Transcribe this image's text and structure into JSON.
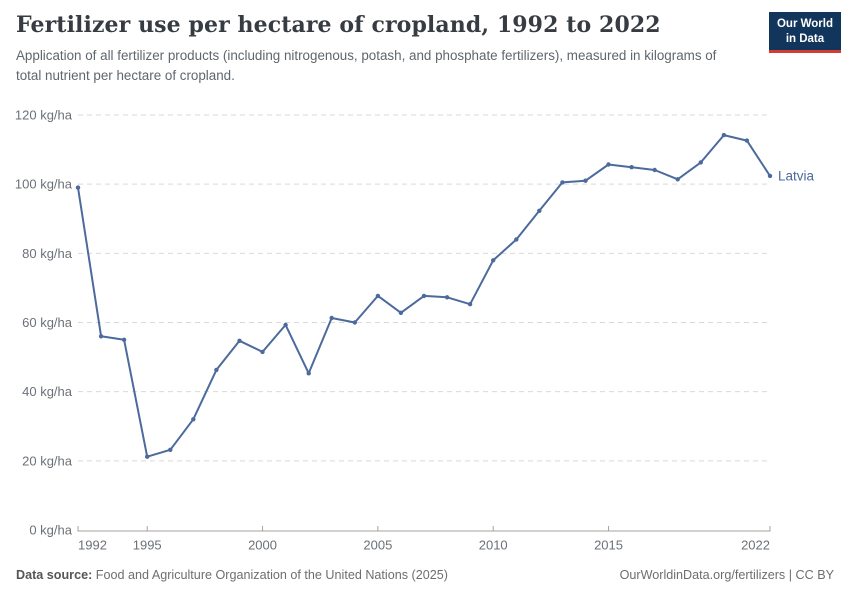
{
  "chart_data": {
    "type": "line",
    "title": "Fertilizer use per hectare of cropland, 1992 to 2022",
    "subtitle": "Application of all fertilizer products (including nitrogenous, potash, and phosphate fertilizers), measured in kilograms of total nutrient per hectare of cropland.",
    "x": [
      1992,
      1993,
      1994,
      1995,
      1996,
      1997,
      1998,
      1999,
      2000,
      2001,
      2002,
      2003,
      2004,
      2005,
      2006,
      2007,
      2008,
      2009,
      2010,
      2011,
      2012,
      2013,
      2014,
      2015,
      2016,
      2017,
      2018,
      2019,
      2020,
      2021,
      2022
    ],
    "series": [
      {
        "name": "Latvia",
        "color": "#4c6a9c",
        "values": [
          99,
          56,
          55,
          21.2,
          23.2,
          32,
          46.3,
          54.7,
          51.5,
          59.3,
          45.3,
          61.3,
          60,
          67.7,
          62.8,
          67.7,
          67.3,
          65.3,
          78,
          84,
          92.3,
          100.5,
          101,
          105.7,
          104.9,
          104.1,
          101.4,
          106.3,
          114.2,
          112.6,
          102.4
        ]
      }
    ],
    "end_label": "Latvia",
    "xlabel": "",
    "ylabel": "",
    "ylim": [
      0,
      120
    ],
    "xlim": [
      1992,
      2022
    ],
    "yticks": [
      0,
      20,
      40,
      60,
      80,
      100,
      120
    ],
    "y_tick_suffix": " kg/ha",
    "xticks": [
      1992,
      1995,
      2000,
      2005,
      2010,
      2015,
      2022
    ],
    "grid": "horizontal-dashed",
    "legend_position": "end-of-line"
  },
  "logo": {
    "line1": "Our World",
    "line2": "in Data"
  },
  "footer": {
    "source_label": "Data source:",
    "source_text": "Food and Agriculture Organization of the United Nations (2025)",
    "credit": "OurWorldinData.org/fertilizers | CC BY"
  },
  "colors": {
    "line": "#4c6a9c",
    "grid": "#d9d9d9",
    "axis": "#a3a3a3",
    "tick_label": "#6b7178",
    "title": "#373c43",
    "subtitle": "#5f666d",
    "logo_bg": "#12355c",
    "logo_accent": "#d13d33"
  }
}
